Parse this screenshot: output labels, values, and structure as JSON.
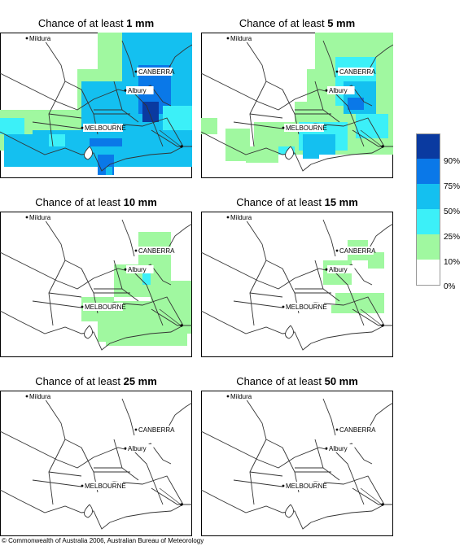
{
  "panels": [
    {
      "title_prefix": "Chance of at least ",
      "amount": "1 mm"
    },
    {
      "title_prefix": "Chance of at least ",
      "amount": "5 mm"
    },
    {
      "title_prefix": "Chance of at least ",
      "amount": "10 mm"
    },
    {
      "title_prefix": "Chance of at least ",
      "amount": "15 mm"
    },
    {
      "title_prefix": "Chance of at least ",
      "amount": "25 mm"
    },
    {
      "title_prefix": "Chance of at least ",
      "amount": "50 mm"
    }
  ],
  "places": {
    "mildura": "Mildura",
    "canberra": "CANBERRA",
    "albury": "Albury",
    "melbourne": "MELBOURNE"
  },
  "legend": {
    "labels": [
      "90%",
      "75%",
      "50%",
      "25%",
      "10%",
      "0%"
    ],
    "colors": [
      "#0a3aa0",
      "#0a78e8",
      "#14c0f0",
      "#3cf0f8",
      "#a0f8a0",
      "#ffffff"
    ]
  },
  "footer": "© Commonwealth of Australia 2006, Australian Bureau of Meteorology"
}
